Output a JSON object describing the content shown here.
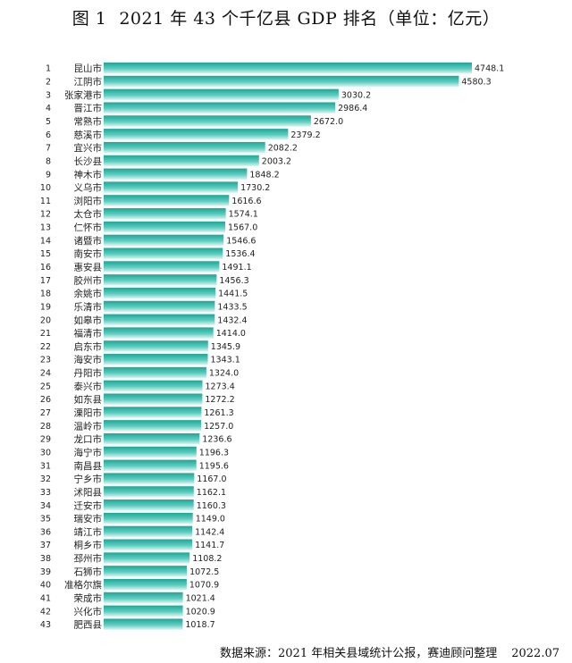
{
  "title": {
    "fig_label": "图 1",
    "text": "2021 年 43 个千亿县 GDP 排名（单位：亿元）"
  },
  "source": {
    "text": "数据来源：2021 年相关县域统计公报，赛迪顾问整理",
    "date": "2022.07"
  },
  "colors": {
    "bar_top": "#1fa596",
    "bar_mid": "#5ccdc0",
    "bar_bottom": "#dff5f2"
  },
  "chart_data": {
    "type": "bar",
    "orientation": "horizontal",
    "title": "2021 年 43 个千亿县 GDP 排名（单位：亿元）",
    "ranks": [
      "1",
      "2",
      "3",
      "4",
      "5",
      "6",
      "7",
      "8",
      "9",
      "10",
      "11",
      "12",
      "13",
      "14",
      "15",
      "16",
      "17",
      "18",
      "19",
      "20",
      "21",
      "22",
      "23",
      "24",
      "25",
      "26",
      "27",
      "28",
      "29",
      "30",
      "31",
      "32",
      "33",
      "34",
      "35",
      "36",
      "37",
      "38",
      "39",
      "40",
      "41",
      "42",
      "43"
    ],
    "categories": [
      "昆山市",
      "江阴市",
      "张家港市",
      "晋江市",
      "常熟市",
      "慈溪市",
      "宜兴市",
      "长沙县",
      "神木市",
      "义乌市",
      "浏阳市",
      "太仓市",
      "仁怀市",
      "诸暨市",
      "南安市",
      "惠安县",
      "胶州市",
      "余姚市",
      "乐清市",
      "如皋市",
      "福清市",
      "启东市",
      "海安市",
      "丹阳市",
      "泰兴市",
      "如东县",
      "溧阳市",
      "温岭市",
      "龙口市",
      "海宁市",
      "南昌县",
      "宁乡市",
      "沭阳县",
      "迁安市",
      "瑞安市",
      "靖江市",
      "桐乡市",
      "邳州市",
      "石狮市",
      "准格尔旗",
      "荣成市",
      "兴化市",
      "肥西县"
    ],
    "values": [
      4748.1,
      4580.3,
      3030.2,
      2986.4,
      2672.0,
      2379.2,
      2082.2,
      2003.2,
      1848.2,
      1730.2,
      1616.6,
      1574.1,
      1567.0,
      1546.6,
      1536.4,
      1491.1,
      1456.3,
      1441.5,
      1433.5,
      1432.4,
      1414.0,
      1345.9,
      1343.1,
      1324.0,
      1273.4,
      1272.2,
      1261.3,
      1257.0,
      1236.6,
      1196.3,
      1195.6,
      1167.0,
      1162.1,
      1160.3,
      1149.0,
      1142.4,
      1141.7,
      1108.2,
      1072.5,
      1070.9,
      1021.4,
      1020.9,
      1018.7
    ],
    "value_labels": [
      "4748.1",
      "4580.3",
      "3030.2",
      "2986.4",
      "2672.0",
      "2379.2",
      "2082.2",
      "2003.2",
      "1848.2",
      "1730.2",
      "1616.6",
      "1574.1",
      "1567.0",
      "1546.6",
      "1536.4",
      "1491.1",
      "1456.3",
      "1441.5",
      "1433.5",
      "1432.4",
      "1414.0",
      "1345.9",
      "1343.1",
      "1324.0",
      "1273.4",
      "1272.2",
      "1261.3",
      "1257.0",
      "1236.6",
      "1196.3",
      "1195.6",
      "1167.0",
      "1162.1",
      "1160.3",
      "1149.0",
      "1142.4",
      "1141.7",
      "1108.2",
      "1072.5",
      "1070.9",
      "1021.4",
      "1020.9",
      "1018.7"
    ],
    "xlim": [
      0,
      4748.1
    ],
    "grid": false,
    "legend": "none"
  }
}
